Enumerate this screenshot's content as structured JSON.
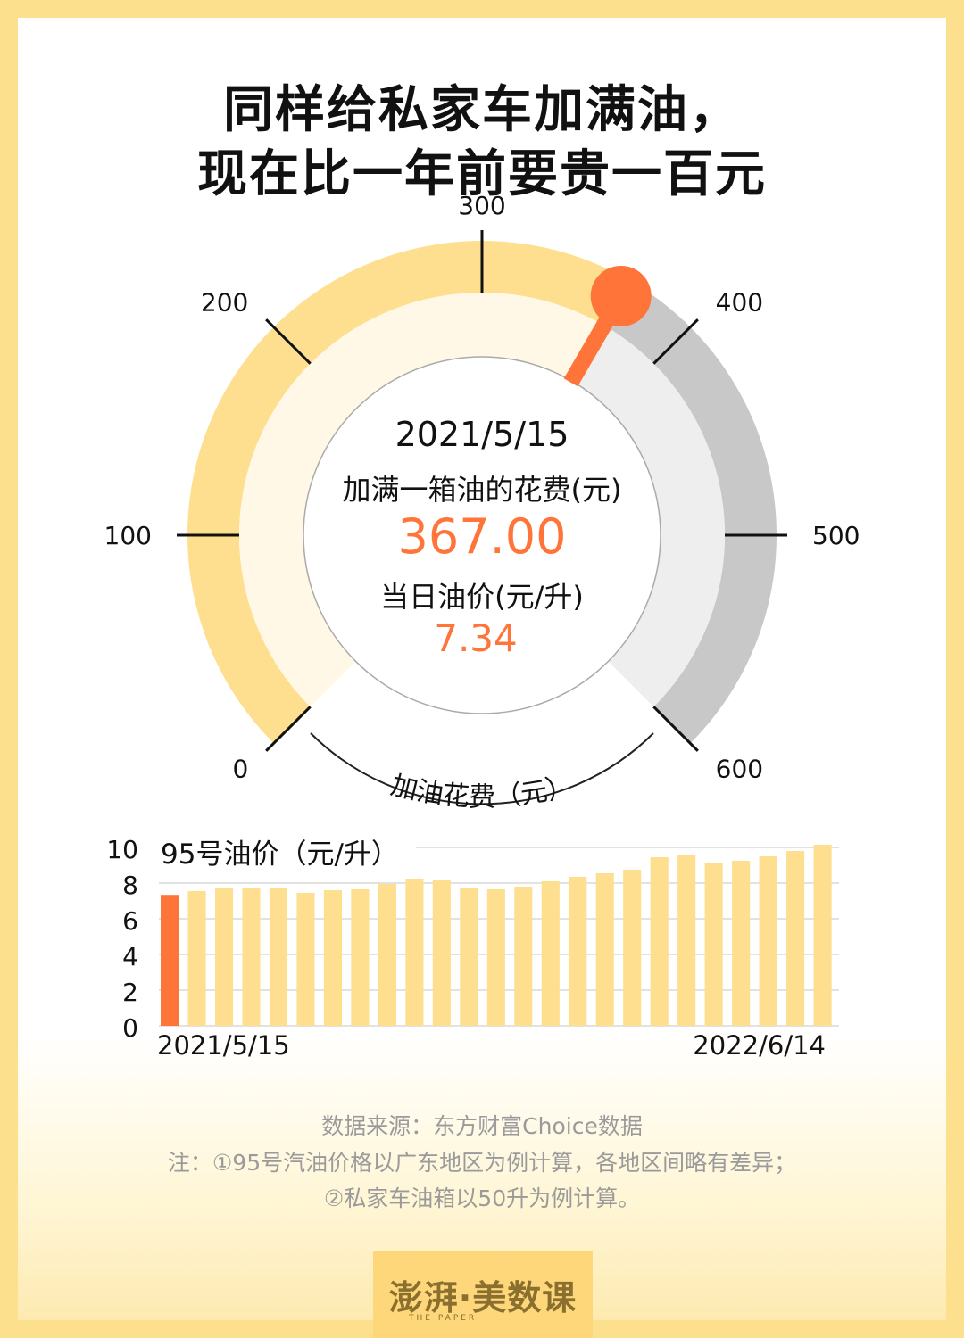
{
  "title_line1": "同样给私家车加满油，",
  "title_line2": "现在比一年前要贵一百元",
  "gauge": {
    "date": "2021/5/15",
    "cost_label": "加满一箱油的花费(元)",
    "cost_value": "367.00",
    "price_label": "当日油价(元/升)",
    "price_value": "7.34",
    "axis_label": "加油花费（元）",
    "min": 0,
    "max": 600,
    "needle_value": 367,
    "ticks": [
      "0",
      "100",
      "200",
      "300",
      "400",
      "500",
      "600"
    ]
  },
  "chart_data": {
    "type": "bar",
    "title": "95号油价（元/升）",
    "ylim": [
      0,
      10
    ],
    "yticks": [
      "0",
      "2",
      "4",
      "6",
      "8",
      "10"
    ],
    "x_start_label": "2021/5/15",
    "x_end_label": "2022/6/14",
    "values": [
      7.34,
      7.55,
      7.7,
      7.72,
      7.7,
      7.45,
      7.6,
      7.65,
      7.95,
      8.25,
      8.15,
      7.75,
      7.65,
      7.8,
      8.1,
      8.35,
      8.55,
      8.75,
      9.45,
      9.55,
      9.1,
      9.25,
      9.5,
      9.8,
      10.15
    ],
    "highlight_index": 0,
    "colors": {
      "bar": "#FDDF8F",
      "highlight": "#FF7439",
      "grid": "#D9D9D9"
    }
  },
  "notes": {
    "source": "数据来源：东方财富Choice数据",
    "note1": "注：①95号汽油价格以广东地区为例计算，各地区间略有差异；",
    "note2": "②私家车油箱以50升为例计算。"
  },
  "logo": {
    "text": "澎湃·美数课",
    "sub": "THE PAPER"
  },
  "colors": {
    "accent": "#FF7439",
    "gauge_filled": "#FDDF8F",
    "gauge_empty": "#C8C8C8",
    "frame": "#FDE08E"
  }
}
